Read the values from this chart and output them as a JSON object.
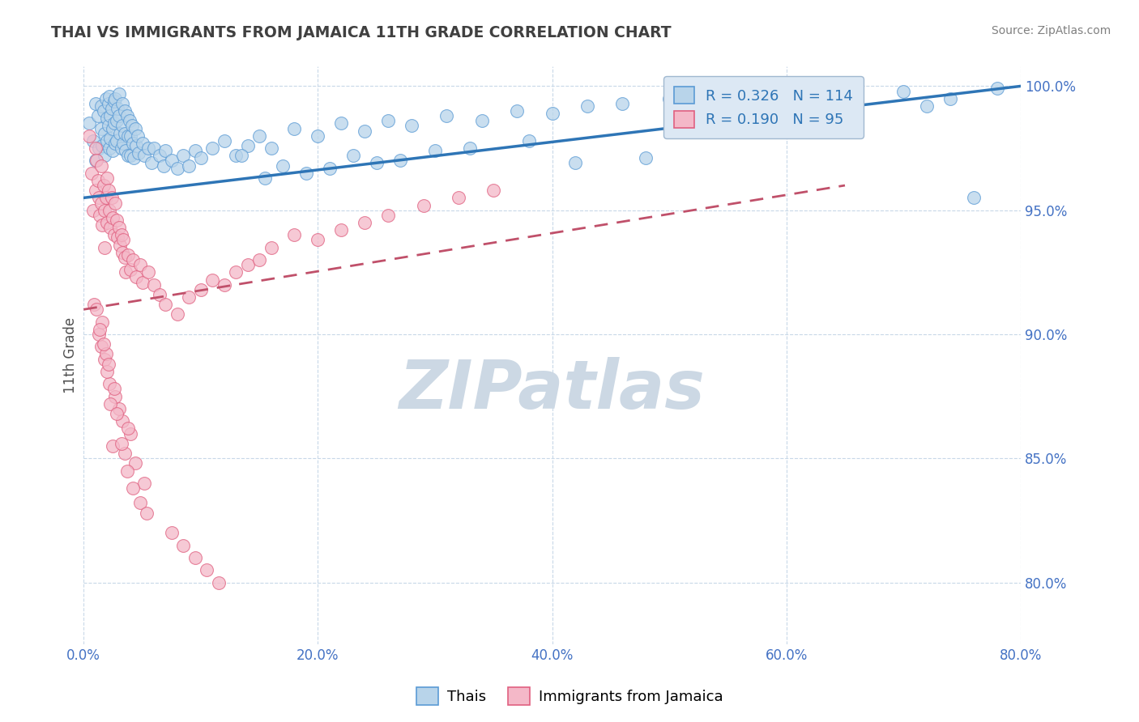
{
  "title": "THAI VS IMMIGRANTS FROM JAMAICA 11TH GRADE CORRELATION CHART",
  "source": "Source: ZipAtlas.com",
  "xmin": 0.0,
  "xmax": 0.8,
  "ymin": 0.775,
  "ymax": 1.008,
  "x_ticks": [
    0.0,
    0.2,
    0.4,
    0.6,
    0.8
  ],
  "y_ticks": [
    0.8,
    0.85,
    0.9,
    0.95,
    1.0
  ],
  "r_thai": 0.326,
  "n_thai": 114,
  "r_jamaica": 0.19,
  "n_jamaica": 95,
  "color_thai_fill": "#b8d4ea",
  "color_thai_edge": "#5b9bd5",
  "color_thai_line": "#2e75b6",
  "color_jamaica_fill": "#f4b8c8",
  "color_jamaica_edge": "#e06080",
  "color_jamaica_line": "#c0506a",
  "color_axis_labels": "#4472c4",
  "color_title": "#404040",
  "color_source": "#808080",
  "color_grid": "#c8d8e8",
  "legend_facecolor": "#dce8f4",
  "legend_edgecolor": "#a0b8d0",
  "watermark_text": "ZIPatlas",
  "watermark_color": "#ccd8e4",
  "background_color": "#ffffff",
  "ylabel_left": "11th Grade",
  "thai_line_x0": 0.0,
  "thai_line_y0": 0.955,
  "thai_line_x1": 0.8,
  "thai_line_y1": 1.0,
  "jamaica_line_x0": 0.0,
  "jamaica_line_y0": 0.91,
  "jamaica_line_x1": 0.65,
  "jamaica_line_y1": 0.96,
  "thai_scatter_x": [
    0.005,
    0.008,
    0.01,
    0.01,
    0.012,
    0.013,
    0.015,
    0.015,
    0.016,
    0.017,
    0.018,
    0.018,
    0.019,
    0.02,
    0.02,
    0.021,
    0.021,
    0.022,
    0.022,
    0.023,
    0.023,
    0.024,
    0.025,
    0.025,
    0.026,
    0.026,
    0.027,
    0.027,
    0.028,
    0.028,
    0.029,
    0.03,
    0.03,
    0.031,
    0.032,
    0.033,
    0.033,
    0.034,
    0.035,
    0.035,
    0.036,
    0.037,
    0.038,
    0.038,
    0.039,
    0.04,
    0.04,
    0.041,
    0.042,
    0.043,
    0.044,
    0.045,
    0.046,
    0.047,
    0.05,
    0.052,
    0.055,
    0.058,
    0.06,
    0.065,
    0.068,
    0.07,
    0.075,
    0.08,
    0.085,
    0.09,
    0.095,
    0.1,
    0.11,
    0.12,
    0.13,
    0.14,
    0.15,
    0.16,
    0.18,
    0.2,
    0.22,
    0.24,
    0.26,
    0.28,
    0.31,
    0.34,
    0.37,
    0.4,
    0.43,
    0.46,
    0.5,
    0.54,
    0.58,
    0.62,
    0.66,
    0.7,
    0.74,
    0.76,
    0.78,
    0.72,
    0.48,
    0.52,
    0.42,
    0.38,
    0.33,
    0.3,
    0.27,
    0.25,
    0.23,
    0.21,
    0.19,
    0.17,
    0.155,
    0.135
  ],
  "thai_scatter_y": [
    0.985,
    0.978,
    0.993,
    0.97,
    0.988,
    0.975,
    0.992,
    0.983,
    0.976,
    0.99,
    0.981,
    0.972,
    0.995,
    0.987,
    0.978,
    0.993,
    0.984,
    0.975,
    0.996,
    0.988,
    0.979,
    0.991,
    0.983,
    0.974,
    0.994,
    0.985,
    0.977,
    0.995,
    0.986,
    0.978,
    0.991,
    0.997,
    0.988,
    0.981,
    0.975,
    0.993,
    0.984,
    0.977,
    0.99,
    0.981,
    0.974,
    0.988,
    0.98,
    0.972,
    0.986,
    0.98,
    0.972,
    0.984,
    0.977,
    0.971,
    0.983,
    0.976,
    0.98,
    0.973,
    0.977,
    0.972,
    0.975,
    0.969,
    0.975,
    0.972,
    0.968,
    0.974,
    0.97,
    0.967,
    0.972,
    0.968,
    0.974,
    0.971,
    0.975,
    0.978,
    0.972,
    0.976,
    0.98,
    0.975,
    0.983,
    0.98,
    0.985,
    0.982,
    0.986,
    0.984,
    0.988,
    0.986,
    0.99,
    0.989,
    0.992,
    0.993,
    0.995,
    0.994,
    0.997,
    0.993,
    0.996,
    0.998,
    0.995,
    0.955,
    0.999,
    0.992,
    0.971,
    0.983,
    0.969,
    0.978,
    0.975,
    0.974,
    0.97,
    0.969,
    0.972,
    0.967,
    0.965,
    0.968,
    0.963,
    0.972
  ],
  "jamaica_scatter_x": [
    0.005,
    0.007,
    0.008,
    0.01,
    0.01,
    0.011,
    0.012,
    0.013,
    0.014,
    0.015,
    0.015,
    0.016,
    0.017,
    0.018,
    0.018,
    0.019,
    0.02,
    0.02,
    0.021,
    0.022,
    0.023,
    0.024,
    0.025,
    0.026,
    0.027,
    0.028,
    0.029,
    0.03,
    0.031,
    0.032,
    0.033,
    0.034,
    0.035,
    0.036,
    0.038,
    0.04,
    0.042,
    0.045,
    0.048,
    0.05,
    0.055,
    0.06,
    0.065,
    0.07,
    0.08,
    0.09,
    0.1,
    0.11,
    0.12,
    0.13,
    0.14,
    0.15,
    0.16,
    0.18,
    0.2,
    0.22,
    0.24,
    0.26,
    0.29,
    0.32,
    0.35,
    0.03,
    0.025,
    0.04,
    0.035,
    0.022,
    0.018,
    0.027,
    0.033,
    0.015,
    0.02,
    0.038,
    0.013,
    0.009,
    0.016,
    0.023,
    0.028,
    0.011,
    0.019,
    0.032,
    0.044,
    0.052,
    0.014,
    0.017,
    0.021,
    0.026,
    0.037,
    0.042,
    0.048,
    0.054,
    0.075,
    0.085,
    0.095,
    0.105,
    0.115
  ],
  "jamaica_scatter_y": [
    0.98,
    0.965,
    0.95,
    0.975,
    0.958,
    0.97,
    0.962,
    0.955,
    0.948,
    0.968,
    0.953,
    0.944,
    0.96,
    0.95,
    0.935,
    0.955,
    0.963,
    0.945,
    0.958,
    0.95,
    0.943,
    0.955,
    0.947,
    0.94,
    0.953,
    0.946,
    0.939,
    0.943,
    0.936,
    0.94,
    0.933,
    0.938,
    0.931,
    0.925,
    0.932,
    0.926,
    0.93,
    0.923,
    0.928,
    0.921,
    0.925,
    0.92,
    0.916,
    0.912,
    0.908,
    0.915,
    0.918,
    0.922,
    0.92,
    0.925,
    0.928,
    0.93,
    0.935,
    0.94,
    0.938,
    0.942,
    0.945,
    0.948,
    0.952,
    0.955,
    0.958,
    0.87,
    0.855,
    0.86,
    0.852,
    0.88,
    0.89,
    0.875,
    0.865,
    0.895,
    0.885,
    0.862,
    0.9,
    0.912,
    0.905,
    0.872,
    0.868,
    0.91,
    0.892,
    0.856,
    0.848,
    0.84,
    0.902,
    0.896,
    0.888,
    0.878,
    0.845,
    0.838,
    0.832,
    0.828,
    0.82,
    0.815,
    0.81,
    0.805,
    0.8
  ]
}
